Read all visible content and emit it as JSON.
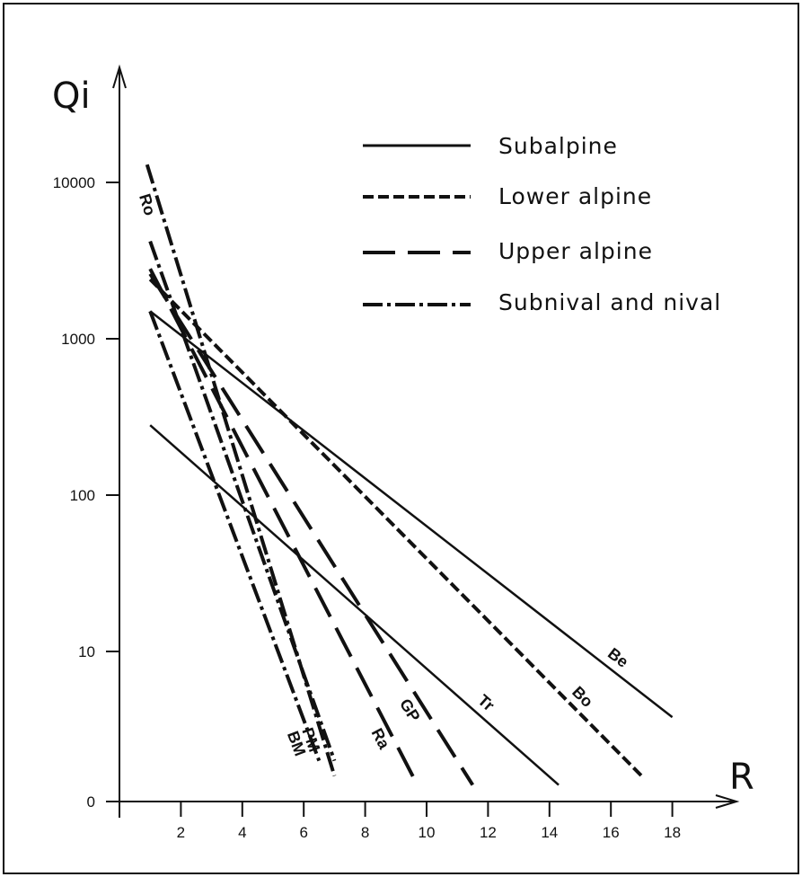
{
  "chart_data": {
    "type": "line",
    "title": "",
    "xlabel": "R",
    "ylabel": "Qi",
    "yscale": "log",
    "xlim": [
      0,
      19
    ],
    "x_ticks": [
      2,
      4,
      6,
      8,
      10,
      12,
      14,
      16,
      18
    ],
    "y_ticks": [
      {
        "value": 0,
        "label": "0"
      },
      {
        "value": 10,
        "label": "10"
      },
      {
        "value": 100,
        "label": "100"
      },
      {
        "value": 1000,
        "label": "1000"
      },
      {
        "value": 10000,
        "label": "10000"
      }
    ],
    "grid": false,
    "legend_position": "top-right",
    "legend": [
      {
        "label": "Subalpine",
        "style": "solid"
      },
      {
        "label": "Lower alpine",
        "style": "short-dash"
      },
      {
        "label": "Upper alpine",
        "style": "long-dash"
      },
      {
        "label": "Subnival and nival",
        "style": "dash-dot"
      }
    ],
    "series": [
      {
        "label": "Be",
        "zone": "Subalpine",
        "style": "solid",
        "points": [
          [
            1,
            1500
          ],
          [
            18,
            3.8
          ]
        ]
      },
      {
        "label": "Tr",
        "zone": "Subalpine",
        "style": "solid",
        "points": [
          [
            1,
            280
          ],
          [
            14.3,
            1.4
          ]
        ]
      },
      {
        "label": "Bo",
        "zone": "Lower alpine",
        "style": "short-dash",
        "points": [
          [
            1,
            2400
          ],
          [
            17,
            1.6
          ]
        ]
      },
      {
        "label": "GP",
        "zone": "Upper alpine",
        "style": "long-dash",
        "points": [
          [
            1,
            2600
          ],
          [
            11.5,
            1.4
          ]
        ]
      },
      {
        "label": "Ra",
        "zone": "Upper alpine",
        "style": "long-dash",
        "points": [
          [
            1,
            2800
          ],
          [
            9.7,
            1.4
          ]
        ]
      },
      {
        "label": "PM",
        "zone": "Subnival and nival",
        "style": "dash-dot",
        "points": [
          [
            1,
            4200
          ],
          [
            7.0,
            2.0
          ]
        ]
      },
      {
        "label": "BM",
        "zone": "Subnival and nival",
        "style": "dash-dot",
        "points": [
          [
            1,
            1500
          ],
          [
            6.5,
            2.0
          ]
        ]
      },
      {
        "label": "Ro",
        "zone": "Subnival and nival",
        "style": "dash-dot",
        "points": [
          [
            0.9,
            13000
          ],
          [
            7.0,
            1.6
          ]
        ]
      }
    ]
  }
}
